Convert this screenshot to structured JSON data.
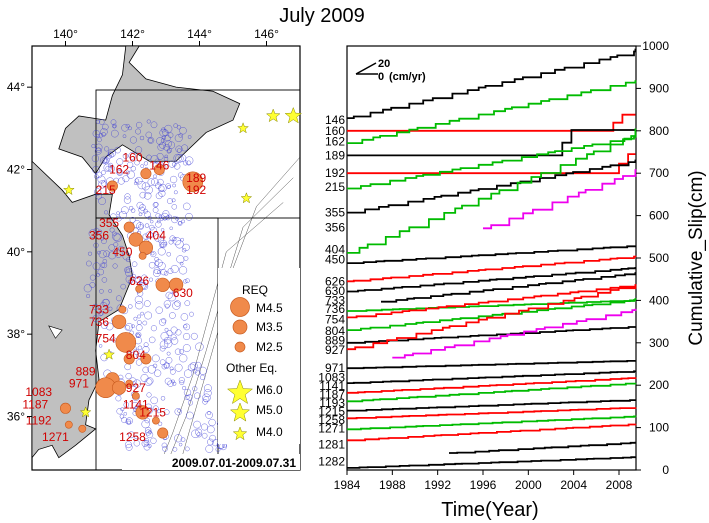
{
  "title": "July 2009",
  "map": {
    "lon_ticks": [
      "140°",
      "142°",
      "144°",
      "146°"
    ],
    "lat_ticks": [
      "44°",
      "42°",
      "40°",
      "38°",
      "36°"
    ],
    "date_range": "2009.07.01-2009.07.31",
    "legend": {
      "req_title": "REQ",
      "req_sizes": [
        "M4.5",
        "M3.5",
        "M2.5"
      ],
      "other_title": "Other Eq.",
      "other_sizes": [
        "M6.0",
        "M5.0",
        "M4.0"
      ]
    },
    "colors": {
      "land": "#c0c0c0",
      "sea": "#ffffff",
      "req": "#f08a4b",
      "seismicity": "#3b3bd6",
      "other_eq": "#ffff33",
      "label": "#d00000"
    },
    "labels": [
      {
        "id": "146",
        "lon": 142.8,
        "lat": 42.0
      },
      {
        "id": "160",
        "lon": 142.0,
        "lat": 42.2
      },
      {
        "id": "162",
        "lon": 141.6,
        "lat": 41.9
      },
      {
        "id": "189",
        "lon": 143.9,
        "lat": 41.7
      },
      {
        "id": "192",
        "lon": 143.9,
        "lat": 41.4
      },
      {
        "id": "215",
        "lon": 141.2,
        "lat": 41.4
      },
      {
        "id": "355",
        "lon": 141.3,
        "lat": 40.6
      },
      {
        "id": "356",
        "lon": 141.0,
        "lat": 40.3
      },
      {
        "id": "404",
        "lon": 142.7,
        "lat": 40.3
      },
      {
        "id": "450",
        "lon": 141.7,
        "lat": 39.9
      },
      {
        "id": "626",
        "lon": 142.2,
        "lat": 39.2
      },
      {
        "id": "630",
        "lon": 143.5,
        "lat": 38.9
      },
      {
        "id": "733",
        "lon": 141.0,
        "lat": 38.5
      },
      {
        "id": "736",
        "lon": 141.0,
        "lat": 38.2
      },
      {
        "id": "754",
        "lon": 141.2,
        "lat": 37.8
      },
      {
        "id": "804",
        "lon": 142.1,
        "lat": 37.4
      },
      {
        "id": "889",
        "lon": 140.6,
        "lat": 37.0
      },
      {
        "id": "927",
        "lon": 142.1,
        "lat": 36.6
      },
      {
        "id": "971",
        "lon": 140.4,
        "lat": 36.7
      },
      {
        "id": "1083",
        "lon": 139.2,
        "lat": 36.5
      },
      {
        "id": "1141",
        "lon": 142.1,
        "lat": 36.2
      },
      {
        "id": "1187",
        "lon": 139.1,
        "lat": 36.2
      },
      {
        "id": "1192",
        "lon": 139.2,
        "lat": 35.8
      },
      {
        "id": "1215",
        "lon": 142.6,
        "lat": 36.0
      },
      {
        "id": "1258",
        "lon": 142.0,
        "lat": 35.4
      },
      {
        "id": "1271",
        "lon": 139.7,
        "lat": 35.4
      }
    ],
    "req_events": [
      {
        "lon": 142.8,
        "lat": 42.0,
        "mag": 3.0
      },
      {
        "lon": 142.4,
        "lat": 41.9,
        "mag": 3.0
      },
      {
        "lon": 141.4,
        "lat": 41.6,
        "mag": 3.0
      },
      {
        "lon": 143.8,
        "lat": 41.7,
        "mag": 4.5
      },
      {
        "lon": 141.9,
        "lat": 40.6,
        "mag": 3.0
      },
      {
        "lon": 142.1,
        "lat": 40.3,
        "mag": 3.5
      },
      {
        "lon": 142.4,
        "lat": 40.1,
        "mag": 3.5
      },
      {
        "lon": 142.3,
        "lat": 39.9,
        "mag": 2.5
      },
      {
        "lon": 142.9,
        "lat": 39.2,
        "mag": 3.5
      },
      {
        "lon": 143.3,
        "lat": 39.2,
        "mag": 3.5
      },
      {
        "lon": 142.2,
        "lat": 39.1,
        "mag": 2.5
      },
      {
        "lon": 141.7,
        "lat": 38.6,
        "mag": 2.5
      },
      {
        "lon": 141.6,
        "lat": 38.3,
        "mag": 3.5
      },
      {
        "lon": 141.8,
        "lat": 37.8,
        "mag": 4.5
      },
      {
        "lon": 141.9,
        "lat": 37.4,
        "mag": 3.0
      },
      {
        "lon": 142.4,
        "lat": 37.4,
        "mag": 3.0
      },
      {
        "lon": 141.4,
        "lat": 36.9,
        "mag": 3.5
      },
      {
        "lon": 141.2,
        "lat": 36.7,
        "mag": 4.5
      },
      {
        "lon": 141.6,
        "lat": 36.7,
        "mag": 3.5
      },
      {
        "lon": 141.9,
        "lat": 36.8,
        "mag": 2.5
      },
      {
        "lon": 142.1,
        "lat": 36.5,
        "mag": 2.5
      },
      {
        "lon": 140.0,
        "lat": 36.2,
        "mag": 3.0
      },
      {
        "lon": 142.3,
        "lat": 36.1,
        "mag": 3.5
      },
      {
        "lon": 142.7,
        "lat": 35.9,
        "mag": 2.5
      },
      {
        "lon": 142.9,
        "lat": 35.6,
        "mag": 3.0
      },
      {
        "lon": 140.5,
        "lat": 35.7,
        "mag": 2.5
      },
      {
        "lon": 140.1,
        "lat": 35.8,
        "mag": 2.5
      }
    ],
    "other_eq": [
      {
        "lon": 146.8,
        "lat": 43.3,
        "mag": 5.5
      },
      {
        "lon": 146.2,
        "lat": 43.3,
        "mag": 5.0
      },
      {
        "lon": 145.3,
        "lat": 43.0,
        "mag": 4.5
      },
      {
        "lon": 145.4,
        "lat": 41.3,
        "mag": 4.5
      },
      {
        "lon": 140.1,
        "lat": 41.5,
        "mag": 4.5
      },
      {
        "lon": 141.3,
        "lat": 37.5,
        "mag": 4.5
      },
      {
        "lon": 140.6,
        "lat": 36.1,
        "mag": 4.5
      }
    ]
  },
  "chart_data": {
    "type": "line",
    "x_axis": {
      "label": "Time(Year)",
      "range": [
        1984,
        2009.5
      ],
      "ticks": [
        "1984",
        "1988",
        "1992",
        "1996",
        "2000",
        "2004",
        "2008"
      ]
    },
    "y_axis": {
      "label": "Cumulative_Slip(cm)",
      "range": [
        0,
        1000
      ],
      "ticks": [
        "0",
        "100",
        "200",
        "300",
        "400",
        "500",
        "600",
        "700",
        "800",
        "900",
        "1000"
      ]
    },
    "scale_annotation": {
      "value": "20",
      "zero": "0",
      "unit": "(cm/yr)"
    },
    "series": [
      {
        "name": "146",
        "color": "#000000",
        "base": 830,
        "rate": 6.2
      },
      {
        "name": "160",
        "color": "#ff0000",
        "base": 800,
        "rate": 0.1,
        "late_jump": [
          2007.5,
          38
        ]
      },
      {
        "name": "162",
        "color": "#00bb00",
        "base": 771,
        "rate": 5.8
      },
      {
        "name": "189",
        "color": "#000000",
        "base": 742,
        "rate": 0.1,
        "late_jump": [
          2003.0,
          60
        ]
      },
      {
        "name": "192",
        "color": "#ff0000",
        "base": 700,
        "rate": 0.1,
        "late_jump": [
          2008.0,
          45
        ]
      },
      {
        "name": "215",
        "color": "#00bb00",
        "base": 664,
        "rate": 4.8
      },
      {
        "name": "355",
        "color": "#000000",
        "base": 607,
        "rate": 4.8
      },
      {
        "name": "356",
        "color": "#ee00ee",
        "base": 570,
        "rate": 10.0,
        "start": 1996.0
      },
      {
        "name": "404",
        "color": "#00bb00",
        "base": 512,
        "rate": 11.0
      },
      {
        "name": "450",
        "color": "#000000",
        "base": 488,
        "rate": 1.6
      },
      {
        "name": "626",
        "color": "#ff0000",
        "base": 445,
        "rate": 2.3
      },
      {
        "name": "630",
        "color": "#000000",
        "base": 421,
        "rate": 2.2
      },
      {
        "name": "733",
        "color": "#000000",
        "base": 397,
        "rate": 3.0,
        "start": 1987.0
      },
      {
        "name": "736",
        "color": "#00bb00",
        "base": 375,
        "rate": 1.0
      },
      {
        "name": "754",
        "color": "#ff0000",
        "base": 360,
        "rate": 3.0
      },
      {
        "name": "804",
        "color": "#00bb00",
        "base": 330,
        "rate": 2.8
      },
      {
        "name": "889",
        "color": "#000000",
        "base": 300,
        "rate": 1.5
      },
      {
        "name": "927",
        "color": "#ff0000",
        "base": 285,
        "rate": 6.0
      },
      {
        "name": "971",
        "color": "#ee00ee",
        "base": 265,
        "rate": 5.3,
        "start": 1988.0
      },
      {
        "name": "1083",
        "color": "#000000",
        "base": 240,
        "rate": 0.7
      },
      {
        "name": "1141",
        "color": "#000000",
        "base": 205,
        "rate": 1.1
      },
      {
        "name": "1187",
        "color": "#ff0000",
        "base": 182,
        "rate": 1.4
      },
      {
        "name": "1192",
        "color": "#00bb00",
        "base": 162,
        "rate": 1.7
      },
      {
        "name": "1193",
        "color": "#000000",
        "base": 140,
        "rate": 1.0
      },
      {
        "name": "1215",
        "color": "#ff0000",
        "base": 122,
        "rate": 1.0
      },
      {
        "name": "1258",
        "color": "#00bb00",
        "base": 96,
        "rate": 1.2
      },
      {
        "name": "1271",
        "color": "#ff0000",
        "base": 70,
        "rate": 1.5
      },
      {
        "name": "1281",
        "color": "#000000",
        "base": 40,
        "rate": 1.5,
        "start": 1993.0
      },
      {
        "name": "1282",
        "color": "#000000",
        "base": 5,
        "rate": 1.0
      }
    ],
    "left_labels": [
      {
        "text": "146",
        "y": 825
      },
      {
        "text": "160",
        "y": 800
      },
      {
        "text": "162",
        "y": 775
      },
      {
        "text": "189",
        "y": 742
      },
      {
        "text": "192",
        "y": 700
      },
      {
        "text": "215",
        "y": 667
      },
      {
        "text": "355",
        "y": 607
      },
      {
        "text": "356",
        "y": 572
      },
      {
        "text": "404",
        "y": 520
      },
      {
        "text": "450",
        "y": 497
      },
      {
        "text": "626",
        "y": 445
      },
      {
        "text": "630",
        "y": 422
      },
      {
        "text": "733",
        "y": 400
      },
      {
        "text": "736",
        "y": 380
      },
      {
        "text": "754",
        "y": 355
      },
      {
        "text": "804",
        "y": 328
      },
      {
        "text": "889",
        "y": 305
      },
      {
        "text": "927",
        "y": 283
      },
      {
        "text": "971",
        "y": 240
      },
      {
        "text": "1083",
        "y": 218
      },
      {
        "text": "1141",
        "y": 198
      },
      {
        "text": "1187",
        "y": 178
      },
      {
        "text": "1193",
        "y": 158
      },
      {
        "text": "1215",
        "y": 138
      },
      {
        "text": "1258",
        "y": 118
      },
      {
        "text": "1271",
        "y": 98
      },
      {
        "text": "1281",
        "y": 60
      },
      {
        "text": "1282",
        "y": 20
      }
    ]
  }
}
